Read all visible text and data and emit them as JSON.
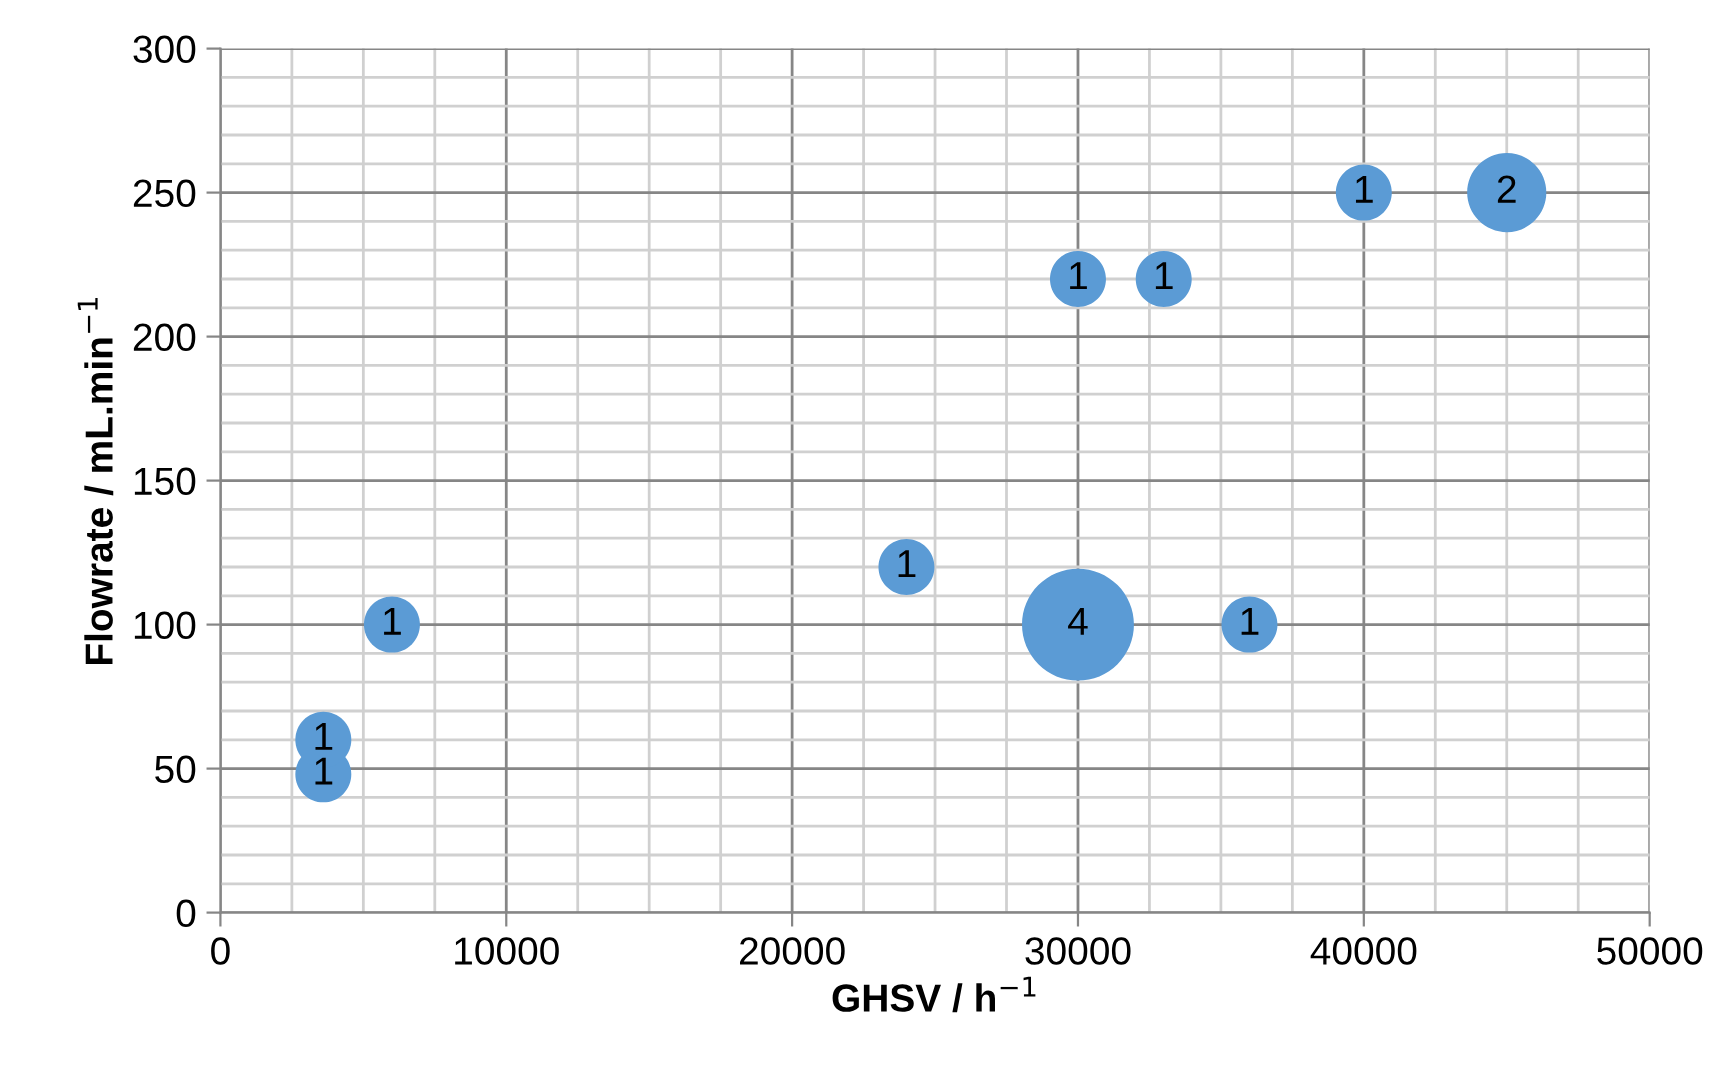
{
  "chart_data": {
    "type": "bubble",
    "xlabel": "GHSV / h$^{−1}$",
    "ylabel": "Flowrate / mL.min$^{−1}$",
    "series": [
      {
        "color": "#5b9bd5",
        "x": [
          3600,
          3600,
          6000,
          24000,
          30000,
          36000,
          30000,
          33000,
          40000,
          45000
        ],
        "values": [
          48,
          60,
          100,
          120,
          100,
          100,
          220,
          220,
          250,
          250
        ],
        "sizes": [
          1,
          1,
          1,
          1,
          4,
          1,
          1,
          1,
          1,
          2
        ],
        "value_labels": [
          "1",
          "1",
          "1",
          "1",
          "4",
          "1",
          "1",
          "1",
          "1",
          "2"
        ]
      }
    ],
    "xlim": [
      0,
      50000
    ],
    "xticks": [
      0,
      {
        "value": 2500,
        "label": null
      },
      {
        "value": 5000,
        "label": null
      },
      {
        "value": 7500,
        "label": null
      },
      10000,
      {
        "value": 12500,
        "label": null
      },
      {
        "value": 15000,
        "label": null
      },
      {
        "value": 17500,
        "label": null
      },
      20000,
      {
        "value": 22500,
        "label": null
      },
      {
        "value": 25000,
        "label": null
      },
      {
        "value": 27500,
        "label": null
      },
      30000,
      {
        "value": 32500,
        "label": null
      },
      {
        "value": 35000,
        "label": null
      },
      {
        "value": 37500,
        "label": null
      },
      40000,
      {
        "value": 42500,
        "label": null
      },
      {
        "value": 45000,
        "label": null
      },
      {
        "value": 47500,
        "label": null
      },
      50000
    ],
    "ylim": [
      0,
      300
    ],
    "yticks": [
      0,
      {
        "value": 10,
        "label": null
      },
      {
        "value": 20,
        "label": null
      },
      {
        "value": 30,
        "label": null
      },
      {
        "value": 40,
        "label": null
      },
      50,
      {
        "value": 60,
        "label": null
      },
      {
        "value": 70,
        "label": null
      },
      {
        "value": 80,
        "label": null
      },
      {
        "value": 90,
        "label": null
      },
      100,
      {
        "value": 110,
        "label": null
      },
      {
        "value": 120,
        "label": null
      },
      {
        "value": 130,
        "label": null
      },
      {
        "value": 140,
        "label": null
      },
      150,
      {
        "value": 160,
        "label": null
      },
      {
        "value": 170,
        "label": null
      },
      {
        "value": 180,
        "label": null
      },
      {
        "value": 190,
        "label": null
      },
      200,
      {
        "value": 210,
        "label": null
      },
      {
        "value": 220,
        "label": null
      },
      {
        "value": 230,
        "label": null
      },
      {
        "value": 240,
        "label": null
      },
      250,
      {
        "value": 260,
        "label": null
      },
      {
        "value": 270,
        "label": null
      },
      {
        "value": 280,
        "label": null
      },
      {
        "value": 290,
        "label": null
      },
      300
    ],
    "grid": true
  }
}
